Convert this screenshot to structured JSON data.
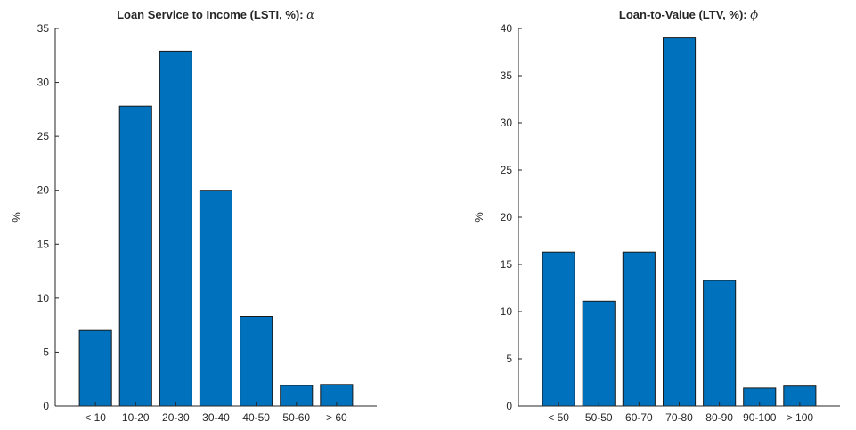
{
  "chart_data": [
    {
      "type": "bar",
      "title": "Loan Service to Income (LSTI, %): ",
      "title_symbol": "α",
      "xlabel": "",
      "ylabel": "%",
      "categories": [
        "< 10",
        "10-20",
        "20-30",
        "30-40",
        "40-50",
        "50-60",
        "> 60"
      ],
      "values": [
        7.0,
        27.8,
        32.9,
        20.0,
        8.3,
        1.9,
        2.0
      ],
      "ylim": [
        0,
        35
      ],
      "yticks": [
        0,
        5,
        10,
        15,
        20,
        25,
        30,
        35
      ],
      "grid": false,
      "bar_color": "#0072BD"
    },
    {
      "type": "bar",
      "title": "Loan-to-Value (LTV, %): ",
      "title_symbol": "ϕ",
      "xlabel": "",
      "ylabel": "%",
      "categories": [
        "< 50",
        "50-50",
        "60-70",
        "70-80",
        "80-90",
        "90-100",
        "> 100"
      ],
      "values": [
        16.3,
        11.1,
        16.3,
        39.0,
        13.3,
        1.9,
        2.1
      ],
      "ylim": [
        0,
        40
      ],
      "yticks": [
        0,
        5,
        10,
        15,
        20,
        25,
        30,
        35,
        40
      ],
      "grid": false,
      "bar_color": "#0072BD"
    }
  ]
}
